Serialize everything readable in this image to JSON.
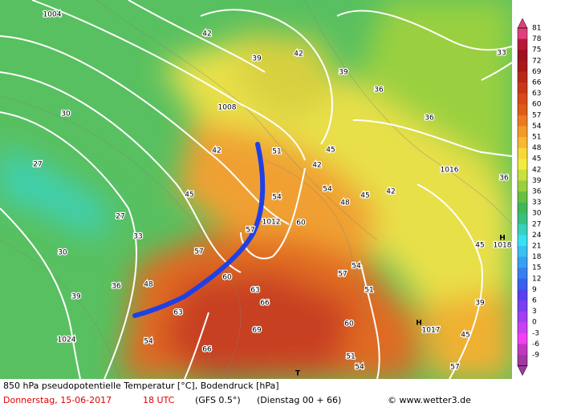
{
  "caption": {
    "line1": "850 hPa pseudopotentielle Temperatur [°C], Bodendruck [hPa]",
    "date": "Donnerstag, 15-06-2017",
    "time": "18 UTC",
    "model": "(GFS 0.5°)",
    "run": "(Dienstag 00 + 66)",
    "credit": "© www.wetter3.de"
  },
  "colorbar": {
    "labels": [
      "81",
      "78",
      "75",
      "72",
      "69",
      "66",
      "63",
      "60",
      "57",
      "54",
      "51",
      "48",
      "45",
      "42",
      "39",
      "36",
      "33",
      "30",
      "27",
      "24",
      "21",
      "18",
      "15",
      "12",
      "9",
      "6",
      "3",
      "0",
      "-3",
      "-6",
      "-9"
    ],
    "colors": [
      "#e0407a",
      "#b81838",
      "#a01020",
      "#a81818",
      "#b82818",
      "#c83818",
      "#d84818",
      "#e05a18",
      "#ec7a20",
      "#f49a28",
      "#f8b830",
      "#f8d838",
      "#f0ec40",
      "#c8e040",
      "#98d040",
      "#68c040",
      "#40b858",
      "#38c080",
      "#38d0c0",
      "#38e0f0",
      "#38c0f0",
      "#38a0f0",
      "#3880f0",
      "#3860f0",
      "#5840f0",
      "#7840f0",
      "#a040f0",
      "#c840f0",
      "#f040f0",
      "#c038c0",
      "#a038a0"
    ]
  },
  "map_labels": [
    "1004",
    "1008",
    "1012",
    "1016",
    "1018",
    "1017",
    "1024",
    "H",
    "H",
    "T",
    "42",
    "39",
    "42",
    "39",
    "36",
    "36",
    "33",
    "36",
    "45",
    "42",
    "51",
    "54",
    "54",
    "60",
    "57",
    "57",
    "48",
    "42",
    "45",
    "45",
    "39",
    "45",
    "63",
    "66",
    "63",
    "60",
    "54",
    "27",
    "30",
    "27",
    "33",
    "30",
    "39",
    "36",
    "48",
    "45",
    "42",
    "51",
    "57",
    "54",
    "60",
    "51",
    "54",
    "57",
    "66",
    "69"
  ]
}
